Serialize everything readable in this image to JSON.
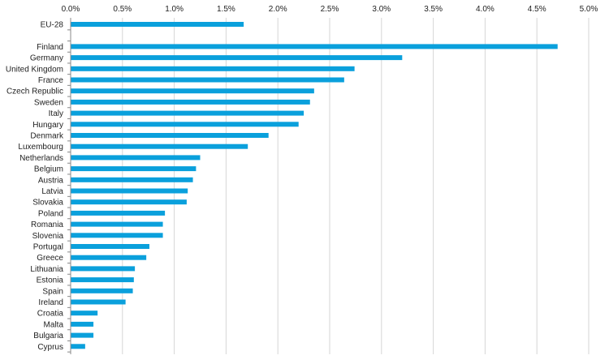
{
  "chart_data": {
    "type": "bar",
    "orientation": "horizontal",
    "x_axis_position": "top",
    "grid": true,
    "xlim": [
      0,
      5
    ],
    "x_ticks": [
      0,
      0.5,
      1,
      1.5,
      2,
      2.5,
      3,
      3.5,
      4,
      4.5,
      5
    ],
    "x_tick_labels": [
      "0.0%",
      "0.5%",
      "1.0%",
      "1.5%",
      "2.0%",
      "2.5%",
      "3.0%",
      "3.5%",
      "4.0%",
      "4.5%",
      "5.0%"
    ],
    "categories": [
      "EU-28",
      "",
      "Finland",
      "Germany",
      "United Kingdom",
      "France",
      "Czech Republic",
      "Sweden",
      "Italy",
      "Hungary",
      "Denmark",
      "Luxembourg",
      "Netherlands",
      "Belgium",
      "Austria",
      "Latvia",
      "Slovakia",
      "Poland",
      "Romania",
      "Slovenia",
      "Portugal",
      "Greece",
      "Lithuania",
      "Estonia",
      "Spain",
      "Ireland",
      "Croatia",
      "Malta",
      "Bulgaria",
      "Cyprus"
    ],
    "values": [
      1.67,
      null,
      4.7,
      3.2,
      2.74,
      2.64,
      2.35,
      2.31,
      2.25,
      2.2,
      1.91,
      1.71,
      1.25,
      1.21,
      1.18,
      1.13,
      1.12,
      0.91,
      0.89,
      0.89,
      0.76,
      0.73,
      0.62,
      0.61,
      0.6,
      0.53,
      0.26,
      0.22,
      0.22,
      0.14
    ],
    "colors": {
      "bar": "#0aa0dc",
      "grid": "#d6d6d6",
      "axis": "#888888"
    }
  }
}
